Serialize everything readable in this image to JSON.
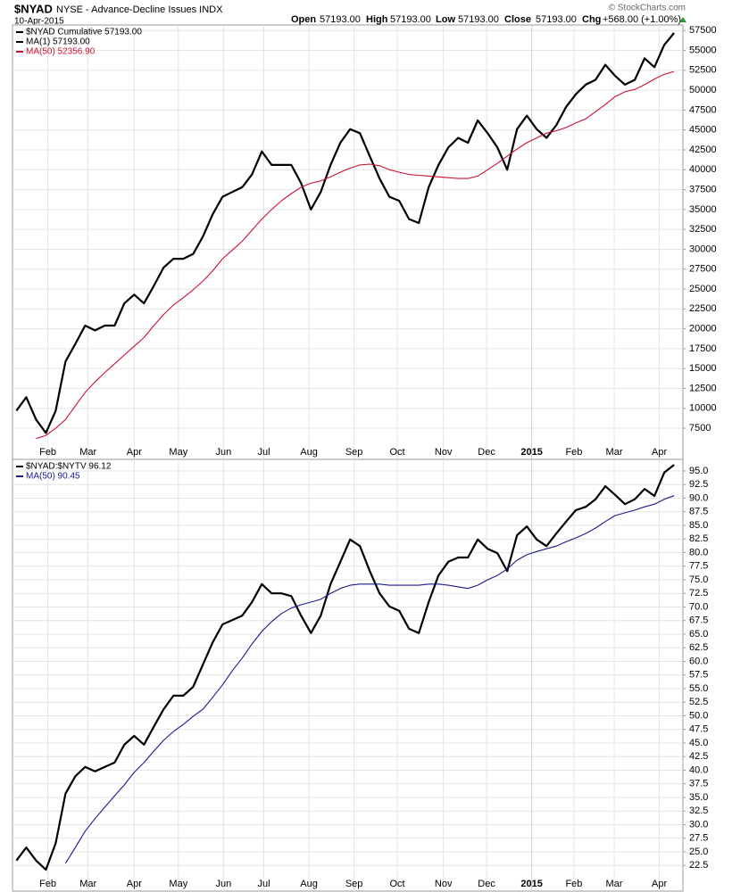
{
  "header": {
    "symbol": "$NYAD",
    "description": "NYSE - Advance-Decline Issues INDX",
    "date": "10-Apr-2015",
    "open": {
      "label": "Open",
      "value": "57193.00"
    },
    "high": {
      "label": "High",
      "value": "57193.00"
    },
    "low": {
      "label": "Low",
      "value": "57193.00"
    },
    "close": {
      "label": "Close",
      "value": "57193.00"
    },
    "change": {
      "label": "Chg",
      "value": "+568.00 (+1.00%)"
    },
    "copyright": "© StockCharts.com"
  },
  "chart_data": [
    {
      "type": "line",
      "grid": true,
      "legend": "upper left",
      "legend_extra": [
        {
          "name": "MA(1) 57193.00",
          "color": "#000000"
        }
      ],
      "xlim": [
        -0.4,
        67.9
      ],
      "xticks": [
        {
          "value": 3.2,
          "label": "Feb"
        },
        {
          "value": 7.3,
          "label": "Mar"
        },
        {
          "value": 12.0,
          "label": "Apr"
        },
        {
          "value": 16.5,
          "label": "May"
        },
        {
          "value": 21.1,
          "label": "Jun"
        },
        {
          "value": 25.2,
          "label": "Jul"
        },
        {
          "value": 29.8,
          "label": "Aug"
        },
        {
          "value": 34.4,
          "label": "Sep"
        },
        {
          "value": 38.8,
          "label": "Oct"
        },
        {
          "value": 43.5,
          "label": "Nov"
        },
        {
          "value": 47.9,
          "label": "Dec"
        },
        {
          "value": 52.5,
          "label": "2015"
        },
        {
          "value": 56.8,
          "label": "Feb"
        },
        {
          "value": 60.9,
          "label": "Mar"
        },
        {
          "value": 65.5,
          "label": "Apr"
        }
      ],
      "ylim": [
        5600,
        58200
      ],
      "yticks": [
        7500,
        10000,
        12500,
        15000,
        17500,
        20000,
        22500,
        25000,
        27500,
        30000,
        32500,
        35000,
        37500,
        40000,
        42500,
        45000,
        47500,
        50000,
        52500,
        55000,
        57500
      ],
      "series": [
        {
          "name": "$NYAD Cumulative 57193.00",
          "color": "#000000",
          "width": 2.2,
          "values": [
            9700,
            11400,
            8600,
            6900,
            9700,
            15900,
            18100,
            20400,
            19800,
            20400,
            20400,
            23200,
            24300,
            23200,
            25400,
            27700,
            28800,
            28800,
            29400,
            31600,
            34400,
            36600,
            37200,
            37800,
            39400,
            42300,
            40600,
            40600,
            40600,
            38300,
            35000,
            37200,
            40600,
            43400,
            45100,
            44600,
            41700,
            38900,
            36600,
            36100,
            33800,
            33300,
            37800,
            40600,
            42800,
            44000,
            43400,
            46200,
            44600,
            42800,
            40000,
            45100,
            46800,
            45100,
            44000,
            45600,
            47900,
            49500,
            50700,
            51300,
            53200,
            51800,
            50700,
            51300,
            54000,
            52900,
            55700,
            57193
          ]
        },
        {
          "name": "MA(50) 52356.90",
          "color": "#cc1133",
          "width": 1.1,
          "values": [
            null,
            null,
            6200,
            6600,
            7500,
            8600,
            10300,
            12000,
            13300,
            14500,
            15600,
            16700,
            17800,
            18900,
            20400,
            21800,
            23000,
            23900,
            24900,
            26000,
            27300,
            28800,
            29900,
            31000,
            32400,
            33800,
            35000,
            36100,
            37000,
            37800,
            38300,
            38600,
            39100,
            39700,
            40200,
            40600,
            40700,
            40500,
            40000,
            39700,
            39400,
            39300,
            39200,
            39100,
            39000,
            38900,
            38900,
            39200,
            40000,
            40800,
            41700,
            42600,
            43400,
            44000,
            44600,
            44900,
            45300,
            45900,
            46400,
            47300,
            48200,
            49200,
            49800,
            50100,
            50700,
            51400,
            52000,
            52356.9
          ]
        }
      ]
    },
    {
      "type": "line",
      "grid": true,
      "legend": "upper left",
      "xlim": [
        -0.4,
        67.9
      ],
      "xticks": [
        {
          "value": 3.2,
          "label": "Feb"
        },
        {
          "value": 7.3,
          "label": "Mar"
        },
        {
          "value": 12.0,
          "label": "Apr"
        },
        {
          "value": 16.5,
          "label": "May"
        },
        {
          "value": 21.1,
          "label": "Jun"
        },
        {
          "value": 25.2,
          "label": "Jul"
        },
        {
          "value": 29.8,
          "label": "Aug"
        },
        {
          "value": 34.4,
          "label": "Sep"
        },
        {
          "value": 38.8,
          "label": "Oct"
        },
        {
          "value": 43.5,
          "label": "Nov"
        },
        {
          "value": 47.9,
          "label": "Dec"
        },
        {
          "value": 52.5,
          "label": "2015"
        },
        {
          "value": 56.8,
          "label": "Feb"
        },
        {
          "value": 60.9,
          "label": "Mar"
        },
        {
          "value": 65.5,
          "label": "Apr"
        }
      ],
      "ylim": [
        20.4,
        96.8
      ],
      "yticks": [
        {
          "value": 22.5,
          "label": "22.5"
        },
        {
          "value": 25,
          "label": "25.0"
        },
        {
          "value": 27.5,
          "label": "27.5"
        },
        {
          "value": 30,
          "label": "30.0"
        },
        {
          "value": 32.5,
          "label": "32.5"
        },
        {
          "value": 35,
          "label": "35.0"
        },
        {
          "value": 37.5,
          "label": "37.5"
        },
        {
          "value": 40,
          "label": "40.0"
        },
        {
          "value": 42.5,
          "label": "42.5"
        },
        {
          "value": 45,
          "label": "45.0"
        },
        {
          "value": 47.5,
          "label": "47.5"
        },
        {
          "value": 50,
          "label": "50.0"
        },
        {
          "value": 52.5,
          "label": "52.5"
        },
        {
          "value": 55,
          "label": "55.0"
        },
        {
          "value": 57.5,
          "label": "57.5"
        },
        {
          "value": 60,
          "label": "60.0"
        },
        {
          "value": 62.5,
          "label": "62.5"
        },
        {
          "value": 65,
          "label": "65.0"
        },
        {
          "value": 67.5,
          "label": "67.5"
        },
        {
          "value": 70,
          "label": "70.0"
        },
        {
          "value": 72.5,
          "label": "72.5"
        },
        {
          "value": 75,
          "label": "75.0"
        },
        {
          "value": 77.5,
          "label": "77.5"
        },
        {
          "value": 80,
          "label": "80.0"
        },
        {
          "value": 82.5,
          "label": "82.5"
        },
        {
          "value": 85,
          "label": "85.0"
        },
        {
          "value": 87.5,
          "label": "87.5"
        },
        {
          "value": 90,
          "label": "90.0"
        },
        {
          "value": 92.5,
          "label": "92.5"
        },
        {
          "value": 95,
          "label": "95.0"
        }
      ],
      "series": [
        {
          "name": "$NYAD:$NYTV 96.12",
          "color": "#000000",
          "width": 2.2,
          "values": [
            23.4,
            25.8,
            23.4,
            21.7,
            26.6,
            35.7,
            38.9,
            40.6,
            39.8,
            40.6,
            41.4,
            44.7,
            46.3,
            44.7,
            48.0,
            51.2,
            53.7,
            53.7,
            55.3,
            59.4,
            63.5,
            66.8,
            67.6,
            68.4,
            70.9,
            74.2,
            72.5,
            72.5,
            72.0,
            68.4,
            65.2,
            68.4,
            74.2,
            78.3,
            82.4,
            81.2,
            76.6,
            72.5,
            70.1,
            69.3,
            66.0,
            65.2,
            70.9,
            75.8,
            78.3,
            79.1,
            79.1,
            82.4,
            80.7,
            79.9,
            76.6,
            83.2,
            84.8,
            82.4,
            81.2,
            83.5,
            85.7,
            87.8,
            88.4,
            89.8,
            92.2,
            90.6,
            88.9,
            89.8,
            91.7,
            90.4,
            94.7,
            96.12
          ]
        },
        {
          "name": "MA(50) 90.45",
          "color": "#1a1a8c",
          "width": 1.1,
          "values": [
            null,
            null,
            null,
            null,
            null,
            22.9,
            25.8,
            28.8,
            31.1,
            33.2,
            35.3,
            37.3,
            39.6,
            41.4,
            43.5,
            45.5,
            47.1,
            48.4,
            49.9,
            51.2,
            53.4,
            55.7,
            58.3,
            60.6,
            63.2,
            65.5,
            67.3,
            68.8,
            69.8,
            70.4,
            70.9,
            71.4,
            72.5,
            73.4,
            74.0,
            74.2,
            74.2,
            74.2,
            74.0,
            74.0,
            74.0,
            74.0,
            74.2,
            74.2,
            74.0,
            73.7,
            73.4,
            74.0,
            75.0,
            75.8,
            77.0,
            78.6,
            79.6,
            80.2,
            80.7,
            81.2,
            82.0,
            82.7,
            83.5,
            84.5,
            85.7,
            86.8,
            87.3,
            87.8,
            88.4,
            88.9,
            89.8,
            90.45
          ]
        }
      ]
    }
  ]
}
